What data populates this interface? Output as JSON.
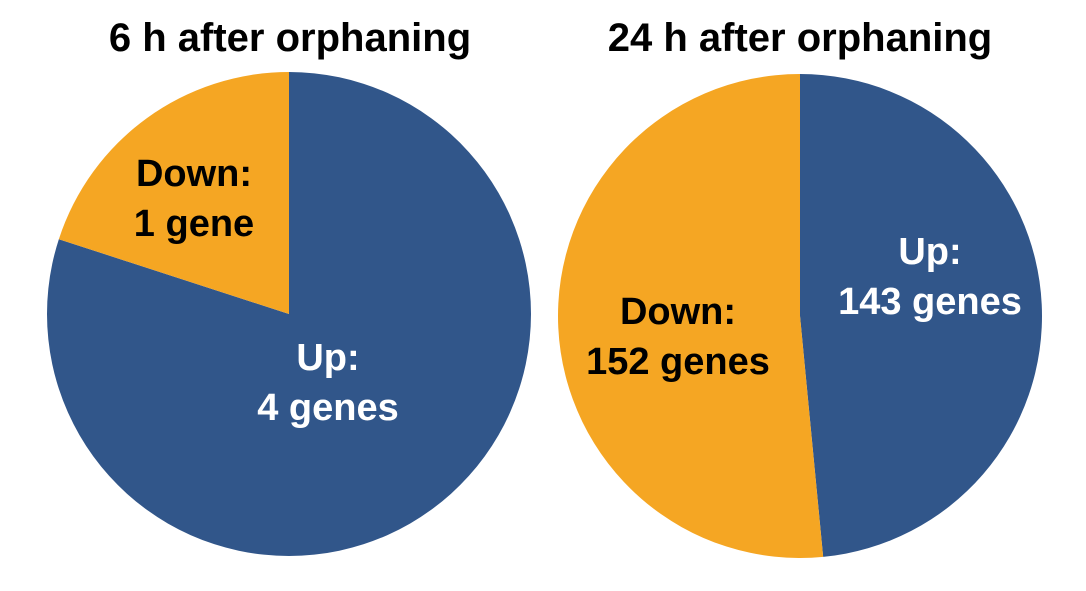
{
  "colors": {
    "up": "#31568A",
    "down": "#F5A623"
  },
  "chart_data": [
    {
      "type": "pie",
      "title": "6 h after orphaning",
      "slices": [
        {
          "category": "Up",
          "value": 4,
          "label_line1": "Up:",
          "label_line2": "4 genes"
        },
        {
          "category": "Down",
          "value": 1,
          "label_line1": "Down:",
          "label_line2": "1 gene"
        }
      ]
    },
    {
      "type": "pie",
      "title": "24 h after orphaning",
      "slices": [
        {
          "category": "Up",
          "value": 143,
          "label_line1": "Up:",
          "label_line2": "143 genes"
        },
        {
          "category": "Down",
          "value": 152,
          "label_line1": "Down:",
          "label_line2": "152 genes"
        }
      ]
    }
  ]
}
